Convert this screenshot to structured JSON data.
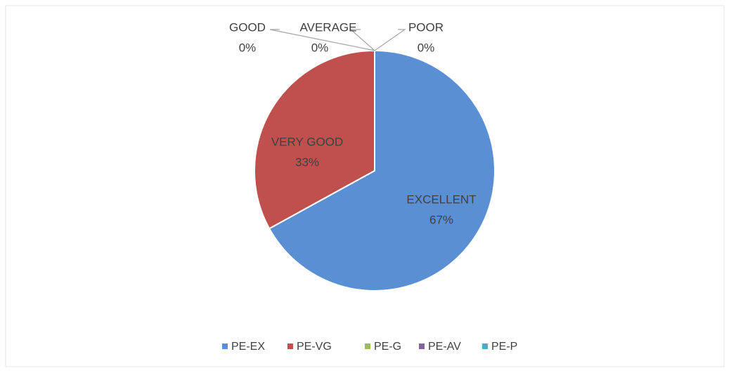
{
  "chart_data": {
    "type": "pie",
    "categories": [
      "PE-EX",
      "PE-VG",
      "PE-G",
      "PE-AV",
      "PE-P"
    ],
    "labels": [
      "EXCELLENT",
      "VERY GOOD",
      "GOOD",
      "AVERAGE",
      "POOR"
    ],
    "values": [
      67,
      33,
      0,
      0,
      0
    ],
    "value_labels": [
      "67%",
      "33%",
      "0%",
      "0%",
      "0%"
    ],
    "colors": [
      "#5b8fd3",
      "#c0504d",
      "#9bbb59",
      "#8064a2",
      "#4bacc6"
    ],
    "legend": "bottom"
  }
}
